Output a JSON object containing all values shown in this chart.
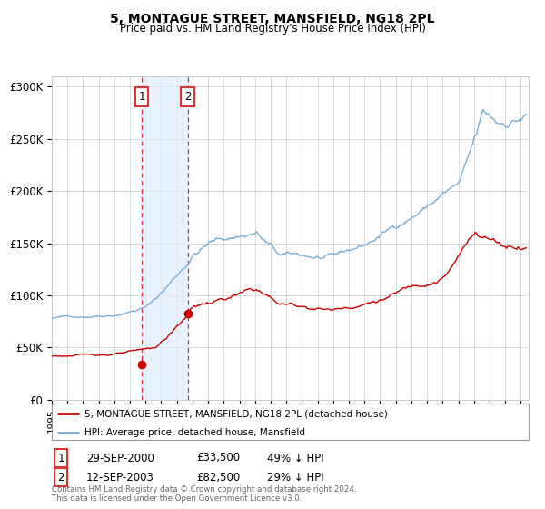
{
  "title": "5, MONTAGUE STREET, MANSFIELD, NG18 2PL",
  "subtitle": "Price paid vs. HM Land Registry's House Price Index (HPI)",
  "hpi_color": "#7aadd4",
  "price_color": "#cc0000",
  "marker_color": "#cc0000",
  "background_color": "#ffffff",
  "grid_color": "#cccccc",
  "shade_color": "#ddeeff",
  "dashed_color": "#dd3333",
  "ylim": [
    0,
    310000
  ],
  "yticks": [
    0,
    50000,
    100000,
    150000,
    200000,
    250000,
    300000
  ],
  "ytick_labels": [
    "£0",
    "£50K",
    "£100K",
    "£150K",
    "£200K",
    "£250K",
    "£300K"
  ],
  "sale1_date_num": 2000.75,
  "sale1_price": 33500,
  "sale1_label": "1",
  "sale2_date_num": 2003.7,
  "sale2_price": 82500,
  "sale2_label": "2",
  "legend_line1": "5, MONTAGUE STREET, MANSFIELD, NG18 2PL (detached house)",
  "legend_line2": "HPI: Average price, detached house, Mansfield",
  "table_row1": [
    "1",
    "29-SEP-2000",
    "£33,500",
    "49% ↓ HPI"
  ],
  "table_row2": [
    "2",
    "12-SEP-2003",
    "£82,500",
    "29% ↓ HPI"
  ],
  "footnote": "Contains HM Land Registry data © Crown copyright and database right 2024.\nThis data is licensed under the Open Government Licence v3.0.",
  "xmin": 1995.0,
  "xmax": 2025.5
}
